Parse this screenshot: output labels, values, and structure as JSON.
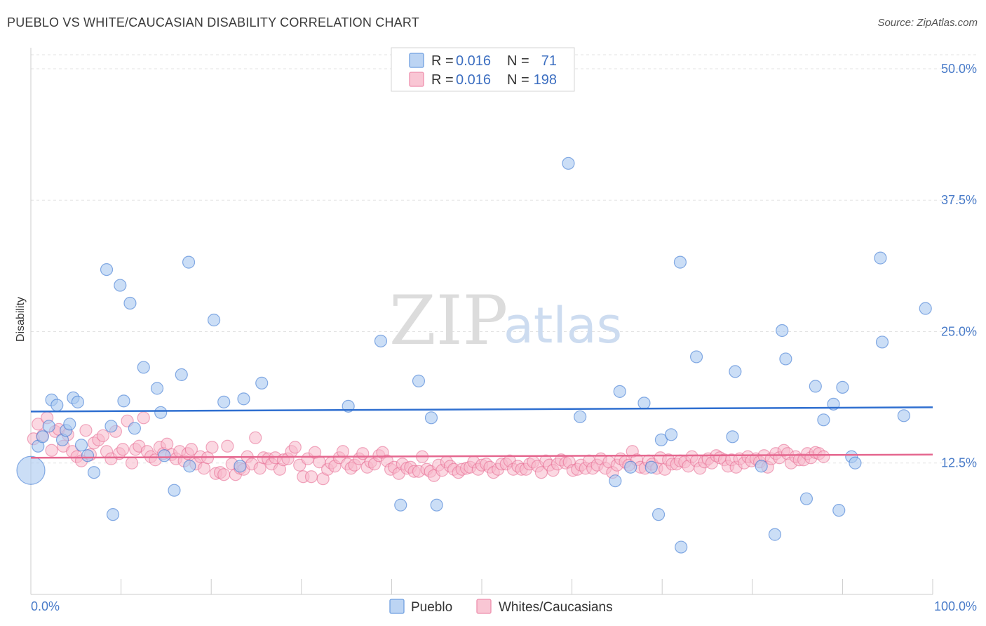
{
  "title": "PUEBLO VS WHITE/CAUCASIAN DISABILITY CORRELATION CHART",
  "source": "Source: ZipAtlas.com",
  "watermark": {
    "zip": "ZIP",
    "atlas": "atlas"
  },
  "colors": {
    "blue": "#2f6fd0",
    "blue_fill": "#a9c8f0",
    "pink": "#e5678f",
    "pink_fill": "#f7b8ca",
    "tick_label": "#4a7cc9"
  },
  "legend": {
    "rows": [
      {
        "r_label": "R =",
        "r_value": "0.016",
        "n_label": "N =",
        "n_value": "71"
      },
      {
        "r_label": "R =",
        "r_value": "0.016",
        "n_label": "N =",
        "n_value": "198"
      }
    ]
  },
  "chart_data": {
    "type": "scatter",
    "title": "PUEBLO VS WHITE/CAUCASIAN DISABILITY CORRELATION CHART",
    "ylabel": "Disability",
    "xlabel": "",
    "xlim": [
      0,
      100
    ],
    "ylim": [
      0,
      52
    ],
    "x_tick_labels": [
      "0.0%",
      "100.0%"
    ],
    "y_ticks": [
      12.5,
      25.0,
      37.5,
      50.0
    ],
    "y_tick_labels": [
      "12.5%",
      "25.0%",
      "37.5%",
      "50.0%"
    ],
    "grid": true,
    "legend_position": "top-center",
    "series": [
      {
        "name": "Pueblo",
        "trend": [
          [
            0,
            17.4
          ],
          [
            100,
            17.8
          ]
        ],
        "points": [
          [
            0,
            11.8,
            "large"
          ],
          [
            0.8,
            14.1
          ],
          [
            1.3,
            15.0
          ],
          [
            2.0,
            16.0
          ],
          [
            2.3,
            18.5
          ],
          [
            2.9,
            18.0
          ],
          [
            3.5,
            14.7
          ],
          [
            3.9,
            15.6
          ],
          [
            4.3,
            16.2
          ],
          [
            4.7,
            18.7
          ],
          [
            5.2,
            18.3
          ],
          [
            5.6,
            14.2
          ],
          [
            6.3,
            13.2
          ],
          [
            7.0,
            11.6
          ],
          [
            8.4,
            30.9
          ],
          [
            8.9,
            16.0
          ],
          [
            9.1,
            7.6
          ],
          [
            9.9,
            29.4
          ],
          [
            10.3,
            18.4
          ],
          [
            11.0,
            27.7
          ],
          [
            11.5,
            15.8
          ],
          [
            12.5,
            21.6
          ],
          [
            14.0,
            19.6
          ],
          [
            14.4,
            17.3
          ],
          [
            14.8,
            13.2
          ],
          [
            15.9,
            9.9
          ],
          [
            16.7,
            20.9
          ],
          [
            17.5,
            31.6
          ],
          [
            17.6,
            12.2
          ],
          [
            20.3,
            26.1
          ],
          [
            21.4,
            18.3
          ],
          [
            23.2,
            12.2
          ],
          [
            23.6,
            18.6
          ],
          [
            25.6,
            20.1
          ],
          [
            35.2,
            17.9
          ],
          [
            38.8,
            24.1
          ],
          [
            41.0,
            8.5
          ],
          [
            43.0,
            20.3
          ],
          [
            44.4,
            16.8
          ],
          [
            45.0,
            8.5
          ],
          [
            59.6,
            41.0
          ],
          [
            60.9,
            16.9
          ],
          [
            64.8,
            10.8
          ],
          [
            65.3,
            19.3
          ],
          [
            66.5,
            12.1
          ],
          [
            68.0,
            18.2
          ],
          [
            68.8,
            12.1
          ],
          [
            69.6,
            7.6
          ],
          [
            69.9,
            14.7
          ],
          [
            71.0,
            15.2
          ],
          [
            72.0,
            31.6
          ],
          [
            72.1,
            4.5
          ],
          [
            73.8,
            22.6
          ],
          [
            77.8,
            15.0
          ],
          [
            78.1,
            21.2
          ],
          [
            81.0,
            12.2
          ],
          [
            82.5,
            5.7
          ],
          [
            83.3,
            25.1
          ],
          [
            83.7,
            22.4
          ],
          [
            86.0,
            9.1
          ],
          [
            87.0,
            19.8
          ],
          [
            87.9,
            16.6
          ],
          [
            89.0,
            18.1
          ],
          [
            89.6,
            8.0
          ],
          [
            90.0,
            19.7
          ],
          [
            91.0,
            13.1
          ],
          [
            91.4,
            12.5
          ],
          [
            94.2,
            32.0
          ],
          [
            94.4,
            24.0
          ],
          [
            96.8,
            17.0
          ],
          [
            99.2,
            27.2
          ]
        ]
      },
      {
        "name": "Whites/Caucasians",
        "trend": [
          [
            0,
            13.0
          ],
          [
            100,
            13.3
          ]
        ],
        "points": [
          [
            0.3,
            14.8
          ],
          [
            0.8,
            16.2
          ],
          [
            1.3,
            15.1
          ],
          [
            1.8,
            16.8
          ],
          [
            2.3,
            13.7
          ],
          [
            2.7,
            15.5
          ],
          [
            3.1,
            15.7
          ],
          [
            3.6,
            14.1
          ],
          [
            4.1,
            15.2
          ],
          [
            4.6,
            13.6
          ],
          [
            5.1,
            13.1
          ],
          [
            5.6,
            12.7
          ],
          [
            6.1,
            15.6
          ],
          [
            6.6,
            13.3
          ],
          [
            7.0,
            14.4
          ],
          [
            7.5,
            14.7
          ],
          [
            8.0,
            15.1
          ],
          [
            8.4,
            13.6
          ],
          [
            8.9,
            12.9
          ],
          [
            9.4,
            15.5
          ],
          [
            9.8,
            13.4
          ],
          [
            10.2,
            13.8
          ],
          [
            10.7,
            16.5
          ],
          [
            11.2,
            12.5
          ],
          [
            11.6,
            13.8
          ],
          [
            12.0,
            14.1
          ],
          [
            12.5,
            16.8
          ],
          [
            12.9,
            13.6
          ],
          [
            13.3,
            13.1
          ],
          [
            13.8,
            12.8
          ],
          [
            14.3,
            14.0
          ],
          [
            14.7,
            13.4
          ],
          [
            15.1,
            14.3
          ],
          [
            15.6,
            13.3
          ],
          [
            16.1,
            12.9
          ],
          [
            16.5,
            13.6
          ],
          [
            17.0,
            12.7
          ],
          [
            17.4,
            13.4
          ],
          [
            17.8,
            13.8
          ],
          [
            18.3,
            12.4
          ],
          [
            18.8,
            13.1
          ],
          [
            19.2,
            12.0
          ],
          [
            19.6,
            13.0
          ],
          [
            20.1,
            14.0
          ],
          [
            20.5,
            11.5
          ],
          [
            21.0,
            11.6
          ],
          [
            21.4,
            11.4
          ],
          [
            21.8,
            14.1
          ],
          [
            22.3,
            12.4
          ],
          [
            22.7,
            11.4
          ],
          [
            23.2,
            12.0
          ],
          [
            23.6,
            11.9
          ],
          [
            24.0,
            13.1
          ],
          [
            24.5,
            12.4
          ],
          [
            24.9,
            14.9
          ],
          [
            25.4,
            12.0
          ],
          [
            25.8,
            13.0
          ],
          [
            26.3,
            12.9
          ],
          [
            26.7,
            12.4
          ],
          [
            27.1,
            13.0
          ],
          [
            27.6,
            11.9
          ],
          [
            28.0,
            12.8
          ],
          [
            28.5,
            12.9
          ],
          [
            28.9,
            13.6
          ],
          [
            29.3,
            14.0
          ],
          [
            29.8,
            12.3
          ],
          [
            30.2,
            11.2
          ],
          [
            30.7,
            12.9
          ],
          [
            31.1,
            11.2
          ],
          [
            31.5,
            13.5
          ],
          [
            32.0,
            12.6
          ],
          [
            32.4,
            11.0
          ],
          [
            32.9,
            11.9
          ],
          [
            33.3,
            12.5
          ],
          [
            33.7,
            12.2
          ],
          [
            34.2,
            13.0
          ],
          [
            34.6,
            13.6
          ],
          [
            35.1,
            12.4
          ],
          [
            35.5,
            12.0
          ],
          [
            35.9,
            12.3
          ],
          [
            36.4,
            12.9
          ],
          [
            36.8,
            13.4
          ],
          [
            37.3,
            12.1
          ],
          [
            37.7,
            12.6
          ],
          [
            38.1,
            12.4
          ],
          [
            38.6,
            13.2
          ],
          [
            39.0,
            13.5
          ],
          [
            39.5,
            12.7
          ],
          [
            39.9,
            11.9
          ],
          [
            40.3,
            12.1
          ],
          [
            40.8,
            11.5
          ],
          [
            41.2,
            12.4
          ],
          [
            41.7,
            12.0
          ],
          [
            42.1,
            12.1
          ],
          [
            42.5,
            11.7
          ],
          [
            43.0,
            11.7
          ],
          [
            43.4,
            13.1
          ],
          [
            43.9,
            11.9
          ],
          [
            44.3,
            11.7
          ],
          [
            44.7,
            11.3
          ],
          [
            45.2,
            12.3
          ],
          [
            45.6,
            11.8
          ],
          [
            46.1,
            12.6
          ],
          [
            46.5,
            12.2
          ],
          [
            46.9,
            11.9
          ],
          [
            47.4,
            11.6
          ],
          [
            47.8,
            11.9
          ],
          [
            48.3,
            12.0
          ],
          [
            48.7,
            12.1
          ],
          [
            49.1,
            12.6
          ],
          [
            49.6,
            11.9
          ],
          [
            50.0,
            12.3
          ],
          [
            50.5,
            12.4
          ],
          [
            50.9,
            12.1
          ],
          [
            51.3,
            11.6
          ],
          [
            51.8,
            11.9
          ],
          [
            52.2,
            12.4
          ],
          [
            52.7,
            12.4
          ],
          [
            53.1,
            12.7
          ],
          [
            53.5,
            11.9
          ],
          [
            54.0,
            12.2
          ],
          [
            54.4,
            11.9
          ],
          [
            54.9,
            11.9
          ],
          [
            55.3,
            12.4
          ],
          [
            55.7,
            12.6
          ],
          [
            56.2,
            12.2
          ],
          [
            56.6,
            11.6
          ],
          [
            57.1,
            12.7
          ],
          [
            57.5,
            12.3
          ],
          [
            57.9,
            11.8
          ],
          [
            58.4,
            12.4
          ],
          [
            58.8,
            12.8
          ],
          [
            59.3,
            12.5
          ],
          [
            59.7,
            12.6
          ],
          [
            60.1,
            11.8
          ],
          [
            60.6,
            11.9
          ],
          [
            61.0,
            12.3
          ],
          [
            61.5,
            12.0
          ],
          [
            61.9,
            12.7
          ],
          [
            62.3,
            12.0
          ],
          [
            62.8,
            12.3
          ],
          [
            63.2,
            12.9
          ],
          [
            63.7,
            12.0
          ],
          [
            64.1,
            12.6
          ],
          [
            64.5,
            11.6
          ],
          [
            65.0,
            12.3
          ],
          [
            65.4,
            12.9
          ],
          [
            65.9,
            12.6
          ],
          [
            66.3,
            12.3
          ],
          [
            66.7,
            13.6
          ],
          [
            67.2,
            12.8
          ],
          [
            67.6,
            12.1
          ],
          [
            68.1,
            12.0
          ],
          [
            68.5,
            12.7
          ],
          [
            68.9,
            12.4
          ],
          [
            69.4,
            12.0
          ],
          [
            69.8,
            13.0
          ],
          [
            70.3,
            11.9
          ],
          [
            70.7,
            12.8
          ],
          [
            71.1,
            12.4
          ],
          [
            71.6,
            12.4
          ],
          [
            72.0,
            12.7
          ],
          [
            72.5,
            12.6
          ],
          [
            72.9,
            12.2
          ],
          [
            73.3,
            13.1
          ],
          [
            73.8,
            12.7
          ],
          [
            74.2,
            12.0
          ],
          [
            74.7,
            12.6
          ],
          [
            75.1,
            12.9
          ],
          [
            75.5,
            12.5
          ],
          [
            76.0,
            13.2
          ],
          [
            76.4,
            13.0
          ],
          [
            76.9,
            12.8
          ],
          [
            77.3,
            12.2
          ],
          [
            77.7,
            12.8
          ],
          [
            78.2,
            12.1
          ],
          [
            78.6,
            12.9
          ],
          [
            79.1,
            12.5
          ],
          [
            79.5,
            13.1
          ],
          [
            79.9,
            12.7
          ],
          [
            80.4,
            12.9
          ],
          [
            80.8,
            12.6
          ],
          [
            81.3,
            13.2
          ],
          [
            81.7,
            12.1
          ],
          [
            82.1,
            12.9
          ],
          [
            82.6,
            13.4
          ],
          [
            83.0,
            13.0
          ],
          [
            83.5,
            13.7
          ],
          [
            83.9,
            13.4
          ],
          [
            84.3,
            12.5
          ],
          [
            84.8,
            13.1
          ],
          [
            85.2,
            12.8
          ],
          [
            85.7,
            12.8
          ],
          [
            86.1,
            13.4
          ],
          [
            86.5,
            13.0
          ],
          [
            87.0,
            13.5
          ],
          [
            87.4,
            13.4
          ],
          [
            87.9,
            13.1
          ]
        ]
      }
    ]
  },
  "bottom_legend": [
    "Pueblo",
    "Whites/Caucasians"
  ]
}
